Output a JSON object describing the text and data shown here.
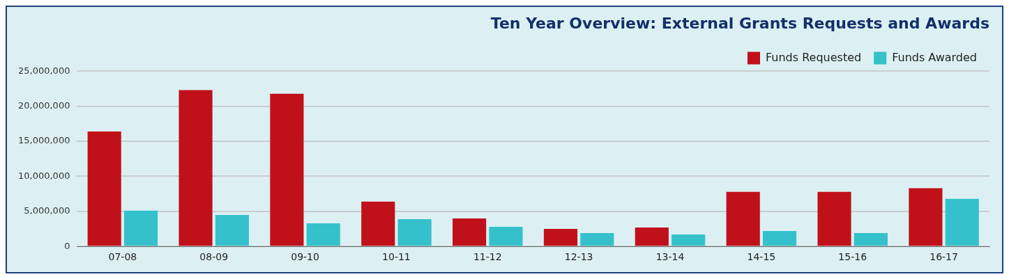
{
  "chart_data": {
    "type": "bar",
    "title": "Ten Year Overview: External Grants Requests and Awards",
    "categories": [
      "07-08",
      "08-09",
      "09-10",
      "10-11",
      "11-12",
      "12-13",
      "13-14",
      "14-15",
      "15-16",
      "16-17"
    ],
    "series": [
      {
        "name": "Funds Requested",
        "color": "#c0111a",
        "values": [
          16400000,
          22300000,
          21800000,
          6400000,
          4000000,
          2500000,
          2700000,
          7800000,
          7800000,
          8300000
        ]
      },
      {
        "name": "Funds Awarded",
        "color": "#35c1cb",
        "values": [
          5100000,
          4500000,
          3300000,
          3900000,
          2800000,
          1900000,
          1700000,
          2200000,
          1900000,
          6800000
        ]
      }
    ],
    "ylim": [
      0,
      25000000
    ],
    "yticks": [
      {
        "value": 0,
        "label": "0"
      },
      {
        "value": 5000000,
        "label": "5,000,000"
      },
      {
        "value": 10000000,
        "label": "10,000,000"
      },
      {
        "value": 15000000,
        "label": "15,000,000"
      },
      {
        "value": 20000000,
        "label": "20,000,000"
      },
      {
        "value": 25000000,
        "label": "25,000,000"
      }
    ],
    "grid": "y",
    "legend": "top right"
  }
}
